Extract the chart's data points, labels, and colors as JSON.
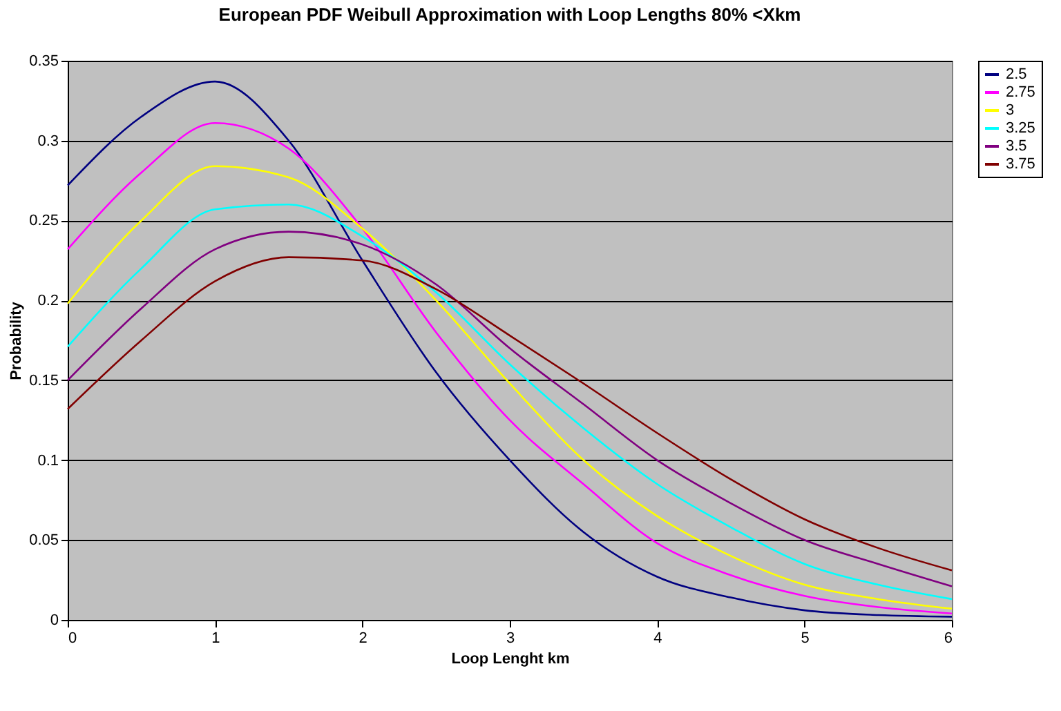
{
  "chart_data": {
    "type": "line",
    "title": "European PDF Weibull Approximation with Loop Lengths 80% <Xkm",
    "xlabel": "Loop Lenght km",
    "ylabel": "Probability",
    "x": [
      0,
      0.5,
      1,
      1.5,
      2,
      2.5,
      3,
      3.5,
      4,
      4.5,
      5,
      5.5,
      6
    ],
    "xlim": [
      0,
      6
    ],
    "xticks": [
      0,
      1,
      2,
      3,
      4,
      5,
      6
    ],
    "ylim": [
      0,
      0.35
    ],
    "yticks": [
      0,
      0.05,
      0.1,
      0.15,
      0.2,
      0.25,
      0.3,
      0.35
    ],
    "grid": "y",
    "legend": "right",
    "marker": "none",
    "line_style": "solid",
    "series": [
      {
        "name": "2.5",
        "color": "#000080",
        "values": [
          0.272,
          0.315,
          0.337,
          0.3,
          0.225,
          0.155,
          0.1,
          0.055,
          0.027,
          0.014,
          0.006,
          0.003,
          0.002
        ]
      },
      {
        "name": "2.75",
        "color": "#ff00ff",
        "values": [
          0.232,
          0.28,
          0.311,
          0.295,
          0.245,
          0.18,
          0.125,
          0.085,
          0.048,
          0.028,
          0.015,
          0.008,
          0.004
        ]
      },
      {
        "name": "3",
        "color": "#ffff00",
        "values": [
          0.198,
          0.25,
          0.284,
          0.277,
          0.245,
          0.2,
          0.148,
          0.1,
          0.065,
          0.04,
          0.022,
          0.013,
          0.007
        ]
      },
      {
        "name": "3.25",
        "color": "#00ffff",
        "values": [
          0.171,
          0.22,
          0.257,
          0.26,
          0.24,
          0.205,
          0.16,
          0.12,
          0.085,
          0.058,
          0.035,
          0.022,
          0.013
        ]
      },
      {
        "name": "3.5",
        "color": "#800080",
        "values": [
          0.15,
          0.195,
          0.232,
          0.243,
          0.235,
          0.21,
          0.17,
          0.135,
          0.1,
          0.073,
          0.05,
          0.035,
          0.021
        ]
      },
      {
        "name": "3.75",
        "color": "#800000",
        "values": [
          0.132,
          0.175,
          0.212,
          0.227,
          0.225,
          0.207,
          0.178,
          0.148,
          0.117,
          0.088,
          0.063,
          0.045,
          0.031
        ]
      }
    ]
  }
}
